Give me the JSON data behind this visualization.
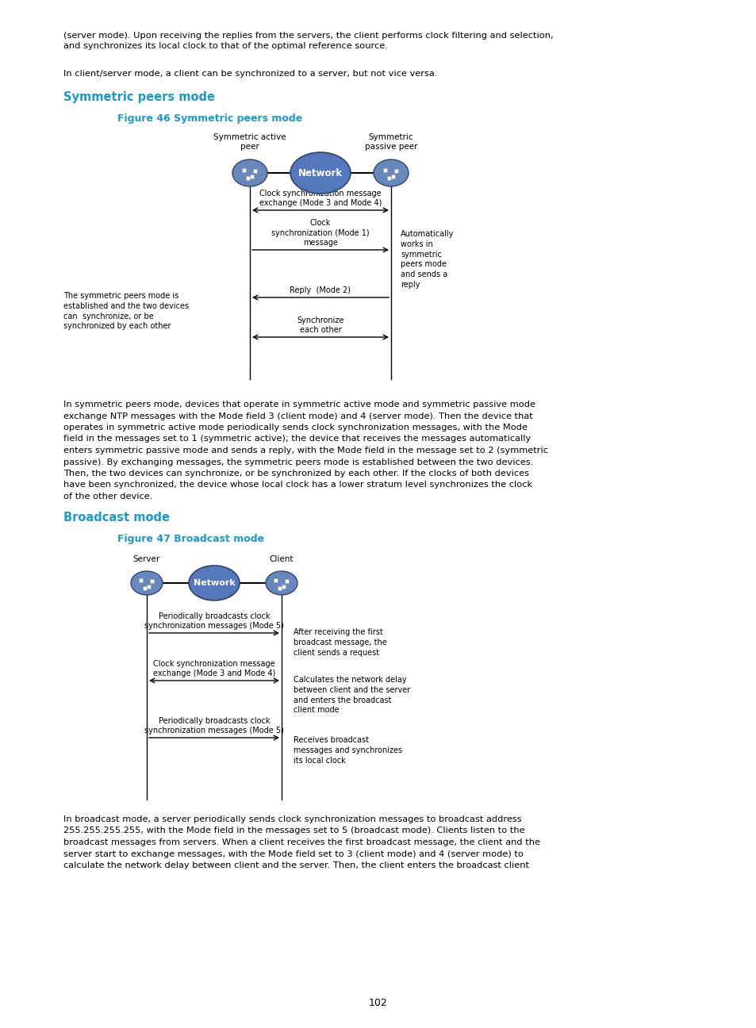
{
  "bg_color": "#ffffff",
  "page_number": "102",
  "text_color": "#000000",
  "heading_color": "#1a9acd",
  "body_font_size": 8.2,
  "heading_font_size": 10.5,
  "fig_caption_font_size": 9.0,
  "intro_text_1": "(server mode). Upon receiving the replies from the servers, the client performs clock filtering and selection,\nand synchronizes its local clock to that of the optimal reference source.",
  "intro_text_2": "In client/server mode, a client can be synchronized to a server, but not vice versa.",
  "section1_heading": "Symmetric peers mode",
  "fig46_caption": "Figure 46 Symmetric peers mode",
  "body_text_sym_lines": [
    "In symmetric peers mode, devices that operate in symmetric active mode and symmetric passive mode",
    "exchange NTP messages with the Mode field 3 (client mode) and 4 (server mode). Then the device that",
    "operates in symmetric active mode periodically sends clock synchronization messages, with the Mode",
    "field in the messages set to 1 (symmetric active); the device that receives the messages automatically",
    "enters symmetric passive mode and sends a reply, with the Mode field in the message set to 2 (symmetric",
    "passive). By exchanging messages, the symmetric peers mode is established between the two devices.",
    "Then, the two devices can synchronize, or be synchronized by each other. If the clocks of both devices",
    "have been synchronized, the device whose local clock has a lower stratum level synchronizes the clock",
    "of the other device."
  ],
  "section2_heading": "Broadcast mode",
  "fig47_caption": "Figure 47 Broadcast mode",
  "body_text_broadcast_lines": [
    "In broadcast mode, a server periodically sends clock synchronization messages to broadcast address",
    "255.255.255.255, with the Mode field in the messages set to 5 (broadcast mode). Clients listen to the",
    "broadcast messages from servers. When a client receives the first broadcast message, the client and the",
    "server start to exchange messages, with the Mode field set to 3 (client mode) and 4 (server mode) to",
    "calculate the network delay between client and the server. Then, the client enters the broadcast client"
  ],
  "network_fill": "#5577bb",
  "network_edge": "#334466",
  "device_fill": "#6688bb",
  "device_edge": "#334477"
}
